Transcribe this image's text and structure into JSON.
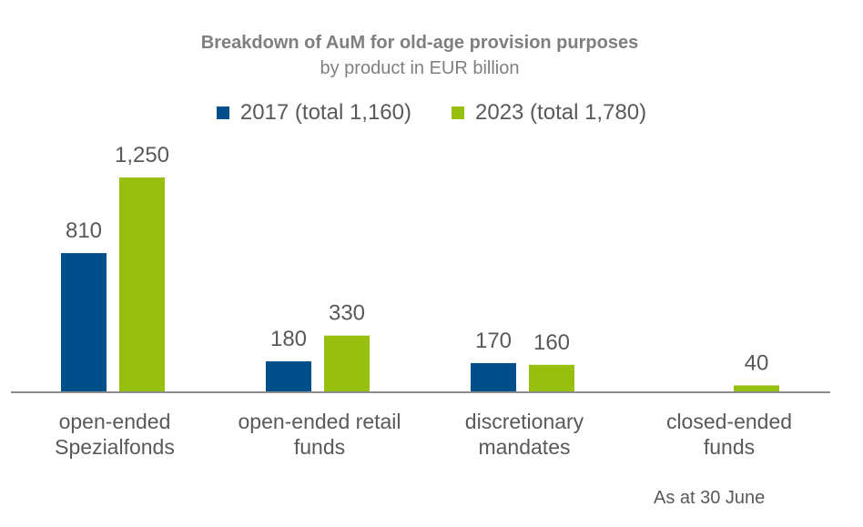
{
  "chart_data": {
    "type": "bar",
    "title": "Breakdown of AuM for old-age provision purposes",
    "subtitle": "by product in EUR billion",
    "categories": [
      [
        "open-ended",
        "Spezialfonds"
      ],
      [
        "open-ended retail",
        "funds"
      ],
      [
        "discretionary",
        "mandates"
      ],
      [
        "closed-ended",
        "funds"
      ]
    ],
    "series": [
      {
        "name": "2017 (total 1,160)",
        "color": "#004e8a",
        "values": [
          810,
          180,
          170,
          null
        ],
        "labels": [
          "810",
          "180",
          "170",
          ""
        ]
      },
      {
        "name": "2023 (total 1,780)",
        "color": "#97bf0d",
        "values": [
          1250,
          330,
          160,
          40
        ],
        "labels": [
          "1,250",
          "330",
          "160",
          "40"
        ]
      }
    ],
    "ylim": [
      0,
      1250
    ],
    "legend": "top",
    "grid": false,
    "note": "As at 30 June"
  }
}
